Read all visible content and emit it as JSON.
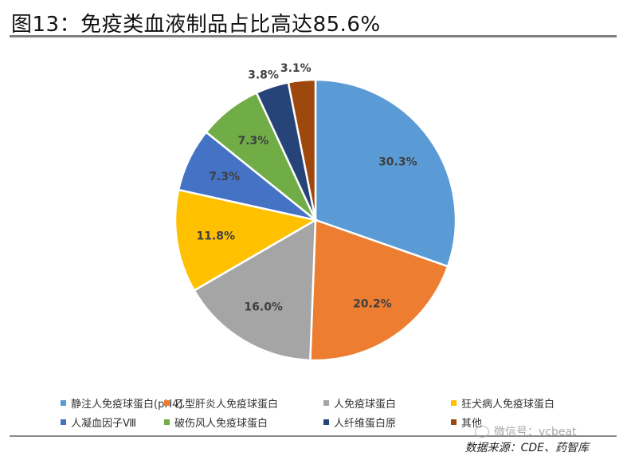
{
  "title": "图13：免疫类血液制品占比高达85.6%",
  "source": "数据来源：CDE、药智库",
  "watermark": "微信号：vcbeat",
  "colors": {
    "blue": "#5b9bd5",
    "orange": "#ed7d31",
    "gray": "#a5a5a5",
    "gold": "#ffc000",
    "darkblue": "#4472c4",
    "green": "#70ad47",
    "navy": "#264478",
    "brown": "#9e480e",
    "label": "#404040"
  },
  "chart_data": {
    "type": "pie",
    "title": "",
    "start_angle_deg": 0,
    "direction": "clockwise",
    "legend_position": "bottom",
    "slices": [
      {
        "label": "静注人免疫球蛋白(pH4)",
        "value": 30.3,
        "display": "30.3%",
        "color": "#5b9bd5"
      },
      {
        "label": "乙型肝炎人免疫球蛋白",
        "value": 20.2,
        "display": "20.2%",
        "color": "#ed7d31"
      },
      {
        "label": "人免疫球蛋白",
        "value": 16.0,
        "display": "16.0%",
        "color": "#a5a5a5"
      },
      {
        "label": "狂犬病人免疫球蛋白",
        "value": 11.8,
        "display": "11.8%",
        "color": "#ffc000"
      },
      {
        "label": "人凝血因子Ⅷ",
        "value": 7.3,
        "display": "7.3%",
        "color": "#4472c4"
      },
      {
        "label": "破伤风人免疫球蛋白",
        "value": 7.3,
        "display": "7.3%",
        "color": "#70ad47"
      },
      {
        "label": "人纤维蛋白原",
        "value": 3.8,
        "display": "3.8%",
        "color": "#264478"
      },
      {
        "label": "其他",
        "value": 3.1,
        "display": "3.1%",
        "color": "#9e480e"
      }
    ]
  }
}
